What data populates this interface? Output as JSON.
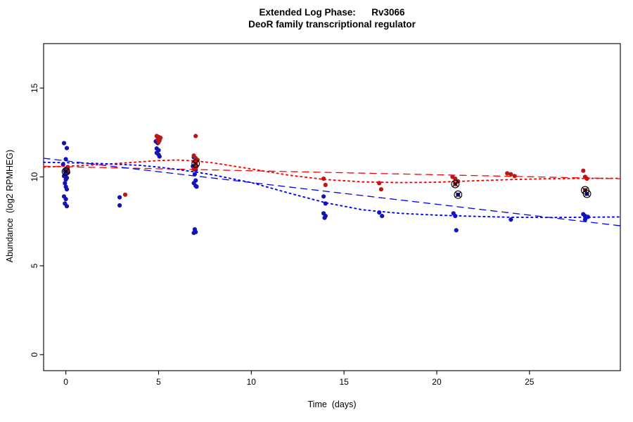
{
  "figure": {
    "title_line1": "Extended Log Phase:      Rv3066",
    "title_line2": "DeoR family transcriptional regulator",
    "xlabel": "Time  (days)",
    "ylabel": "Abundance  (log2 RPMHEG)"
  },
  "chart_data": {
    "type": "scatter",
    "title": "Extended Log Phase: Rv3066",
    "subtitle": "DeoR family transcriptional regulator",
    "xlabel": "Time (days)",
    "ylabel": "Abundance (log2 RPMHEG)",
    "xlim": [
      -1.2,
      29.9
    ],
    "ylim": [
      -0.9,
      17.5
    ],
    "xticks": [
      0,
      5,
      10,
      15,
      20,
      25
    ],
    "yticks": [
      0,
      5,
      10,
      15
    ],
    "grid": false,
    "legend": "none",
    "series": [
      {
        "name": "condition-blue",
        "color": "#1414b4",
        "points": [
          [
            -0.1,
            11.9
          ],
          [
            0.05,
            11.62
          ],
          [
            0,
            11.0
          ],
          [
            -0.15,
            10.7
          ],
          [
            0.1,
            10.55
          ],
          [
            0,
            10.45
          ],
          [
            -0.05,
            10.32
          ],
          [
            0.12,
            10.25
          ],
          [
            0,
            10.15
          ],
          [
            -0.1,
            10.05
          ],
          [
            0.05,
            9.95
          ],
          [
            0,
            9.85
          ],
          [
            -0.05,
            9.65
          ],
          [
            0,
            9.45
          ],
          [
            0.05,
            9.3
          ],
          [
            -0.1,
            8.9
          ],
          [
            0,
            8.75
          ],
          [
            -0.05,
            8.5
          ],
          [
            0.05,
            8.35
          ],
          [
            2.9,
            8.85
          ],
          [
            2.9,
            8.4
          ],
          [
            4.85,
            12.0
          ],
          [
            4.95,
            11.9
          ],
          [
            4.9,
            11.6
          ],
          [
            5.0,
            11.5
          ],
          [
            4.9,
            11.35
          ],
          [
            5.0,
            11.25
          ],
          [
            5.05,
            11.15
          ],
          [
            6.9,
            11.1
          ],
          [
            7.0,
            10.9
          ],
          [
            6.85,
            10.6
          ],
          [
            7.0,
            10.4
          ],
          [
            6.95,
            10.15
          ],
          [
            7.0,
            9.8
          ],
          [
            6.9,
            9.65
          ],
          [
            7.0,
            9.5
          ],
          [
            7.05,
            9.45
          ],
          [
            6.95,
            7.05
          ],
          [
            7.0,
            6.9
          ],
          [
            6.9,
            6.85
          ],
          [
            13.9,
            8.9
          ],
          [
            14.0,
            8.5
          ],
          [
            13.9,
            7.95
          ],
          [
            14.0,
            7.8
          ],
          [
            13.95,
            7.7
          ],
          [
            16.9,
            8.0
          ],
          [
            17.05,
            7.8
          ],
          [
            20.9,
            7.95
          ],
          [
            21.0,
            7.8
          ],
          [
            21.05,
            7.0
          ],
          [
            24.0,
            7.6
          ],
          [
            27.9,
            7.9
          ],
          [
            28.0,
            7.8
          ],
          [
            28.15,
            7.75
          ],
          [
            28.0,
            7.6
          ]
        ]
      },
      {
        "name": "condition-red",
        "color": "#b81818",
        "points": [
          [
            0.1,
            10.45
          ],
          [
            0.05,
            10.3
          ],
          [
            3.2,
            9.0
          ],
          [
            4.9,
            12.3
          ],
          [
            5.0,
            12.25
          ],
          [
            5.1,
            12.2
          ],
          [
            4.95,
            12.1
          ],
          [
            5.05,
            12.05
          ],
          [
            5.0,
            11.95
          ],
          [
            7.0,
            12.3
          ],
          [
            6.9,
            11.2
          ],
          [
            7.0,
            11.05
          ],
          [
            7.1,
            10.95
          ],
          [
            6.95,
            10.85
          ],
          [
            7.0,
            10.75
          ],
          [
            7.05,
            10.6
          ],
          [
            7.0,
            10.5
          ],
          [
            6.9,
            10.45
          ],
          [
            13.9,
            9.9
          ],
          [
            14.0,
            9.55
          ],
          [
            16.9,
            9.65
          ],
          [
            17.0,
            9.3
          ],
          [
            20.85,
            10.0
          ],
          [
            21.0,
            9.9
          ],
          [
            21.15,
            9.75
          ],
          [
            21.0,
            9.6
          ],
          [
            23.8,
            10.2
          ],
          [
            24.0,
            10.15
          ],
          [
            24.2,
            10.05
          ],
          [
            27.9,
            10.35
          ],
          [
            28.0,
            10.0
          ],
          [
            28.1,
            9.9
          ],
          [
            28.0,
            9.25
          ]
        ]
      }
    ],
    "flagged_points": [
      {
        "x": 0.0,
        "y": 10.3,
        "color": "#1414b4"
      },
      {
        "x": 7.0,
        "y": 10.75,
        "color": "#b81818"
      },
      {
        "x": 21.0,
        "y": 9.6,
        "color": "#b81818"
      },
      {
        "x": 21.15,
        "y": 9.0,
        "color": "#1414b4"
      },
      {
        "x": 28.0,
        "y": 9.25,
        "color": "#b81818"
      },
      {
        "x": 28.1,
        "y": 9.05,
        "color": "#1414b4"
      }
    ],
    "trend_lines": [
      {
        "name": "red-linear-fit",
        "color": "#ff0000",
        "style": "dashed",
        "points": [
          [
            -1.2,
            10.6
          ],
          [
            29.9,
            9.9
          ]
        ]
      },
      {
        "name": "blue-linear-fit",
        "color": "#0000ff",
        "style": "dashed",
        "points": [
          [
            -1.2,
            11.05
          ],
          [
            29.9,
            7.25
          ]
        ]
      },
      {
        "name": "red-loess-fit",
        "color": "#ff0000",
        "style": "dotted",
        "points": [
          [
            -1.2,
            10.55
          ],
          [
            0,
            10.6
          ],
          [
            2,
            10.7
          ],
          [
            4,
            10.85
          ],
          [
            5,
            10.92
          ],
          [
            6,
            10.95
          ],
          [
            7,
            10.9
          ],
          [
            8,
            10.78
          ],
          [
            10,
            10.45
          ],
          [
            12,
            10.1
          ],
          [
            14,
            9.85
          ],
          [
            16,
            9.72
          ],
          [
            18,
            9.68
          ],
          [
            20,
            9.7
          ],
          [
            22,
            9.78
          ],
          [
            24,
            9.85
          ],
          [
            26,
            9.9
          ],
          [
            28,
            9.92
          ],
          [
            29.9,
            9.92
          ]
        ]
      },
      {
        "name": "blue-loess-fit",
        "color": "#0000ff",
        "style": "dotted",
        "points": [
          [
            -1.2,
            10.82
          ],
          [
            0,
            10.8
          ],
          [
            2,
            10.75
          ],
          [
            4,
            10.65
          ],
          [
            5,
            10.55
          ],
          [
            6,
            10.42
          ],
          [
            7,
            10.28
          ],
          [
            8,
            10.1
          ],
          [
            10,
            9.68
          ],
          [
            12,
            9.1
          ],
          [
            14,
            8.55
          ],
          [
            16,
            8.15
          ],
          [
            18,
            7.95
          ],
          [
            20,
            7.85
          ],
          [
            22,
            7.78
          ],
          [
            24,
            7.73
          ],
          [
            26,
            7.72
          ],
          [
            28,
            7.73
          ],
          [
            29.9,
            7.75
          ]
        ]
      }
    ]
  }
}
